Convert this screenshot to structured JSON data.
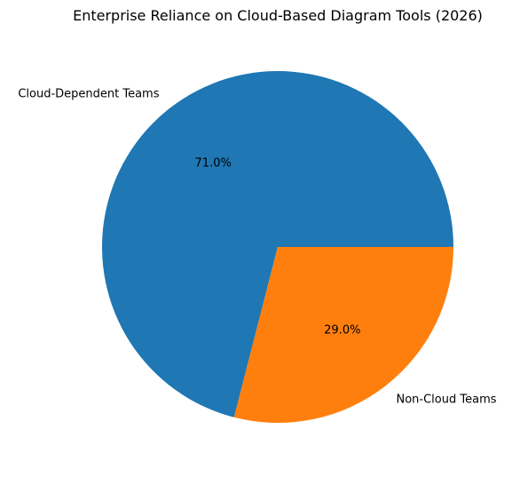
{
  "chart_data": {
    "type": "pie",
    "title": "Enterprise Reliance on Cloud-Based Diagram Tools (2026)",
    "slices": [
      {
        "label": "Cloud-Dependent Teams",
        "value": 71.0,
        "pct_label": "71.0%",
        "color": "#1f77b4"
      },
      {
        "label": "Non-Cloud Teams",
        "value": 29.0,
        "pct_label": "29.0%",
        "color": "#ff7f0e"
      }
    ],
    "start_angle_deg": 0,
    "direction": "counterclockwise",
    "legend": "none"
  }
}
